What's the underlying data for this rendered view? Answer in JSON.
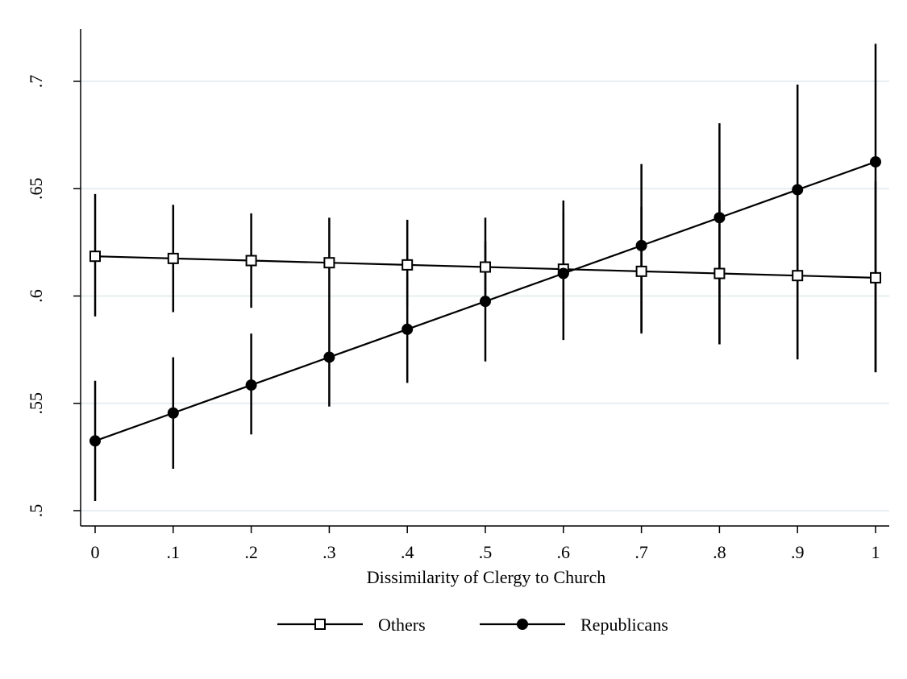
{
  "chart_data": {
    "type": "line",
    "title": "",
    "xlabel": "Dissimilarity of Clergy to Church",
    "ylabel": "",
    "xlim": [
      0,
      1
    ],
    "ylim": [
      0.5,
      0.7
    ],
    "x": [
      0,
      0.1,
      0.2,
      0.3,
      0.4,
      0.5,
      0.6,
      0.7,
      0.8,
      0.9,
      1
    ],
    "x_tick_labels": [
      "0",
      ".1",
      ".2",
      ".3",
      ".4",
      ".5",
      ".6",
      ".7",
      ".8",
      ".9",
      "1"
    ],
    "y_ticks": [
      0.5,
      0.55,
      0.6,
      0.65,
      0.7
    ],
    "y_tick_labels": [
      ".5",
      ".55",
      ".6",
      ".65",
      ".7"
    ],
    "grid": true,
    "legend_position": "bottom",
    "series": [
      {
        "name": "Others",
        "marker": "hollow-square",
        "color": "#000000",
        "values": [
          0.6185,
          0.6175,
          0.6165,
          0.6155,
          0.6145,
          0.6135,
          0.6125,
          0.6115,
          0.6105,
          0.6095,
          0.6085
        ],
        "ci_lower": [
          0.5905,
          0.5925,
          0.5945,
          0.5955,
          0.5955,
          0.5955,
          0.5885,
          0.5825,
          0.5775,
          0.5705,
          0.5645
        ],
        "ci_upper": [
          0.6475,
          0.6425,
          0.6385,
          0.6365,
          0.6355,
          0.6365,
          0.6395,
          0.6415,
          0.6445,
          0.6495,
          0.6535
        ]
      },
      {
        "name": "Republicans",
        "marker": "filled-circle",
        "color": "#000000",
        "values": [
          0.5325,
          0.5455,
          0.5585,
          0.5715,
          0.5845,
          0.5975,
          0.6105,
          0.6235,
          0.6365,
          0.6495,
          0.6625
        ],
        "ci_lower": [
          0.5045,
          0.5195,
          0.5355,
          0.5485,
          0.5595,
          0.5695,
          0.5795,
          0.5835,
          0.5775,
          0.5705,
          0.5645
        ],
        "ci_upper": [
          0.5605,
          0.5715,
          0.5825,
          0.5955,
          0.6095,
          0.6255,
          0.6445,
          0.6615,
          0.6805,
          0.6985,
          0.7175
        ]
      }
    ]
  }
}
